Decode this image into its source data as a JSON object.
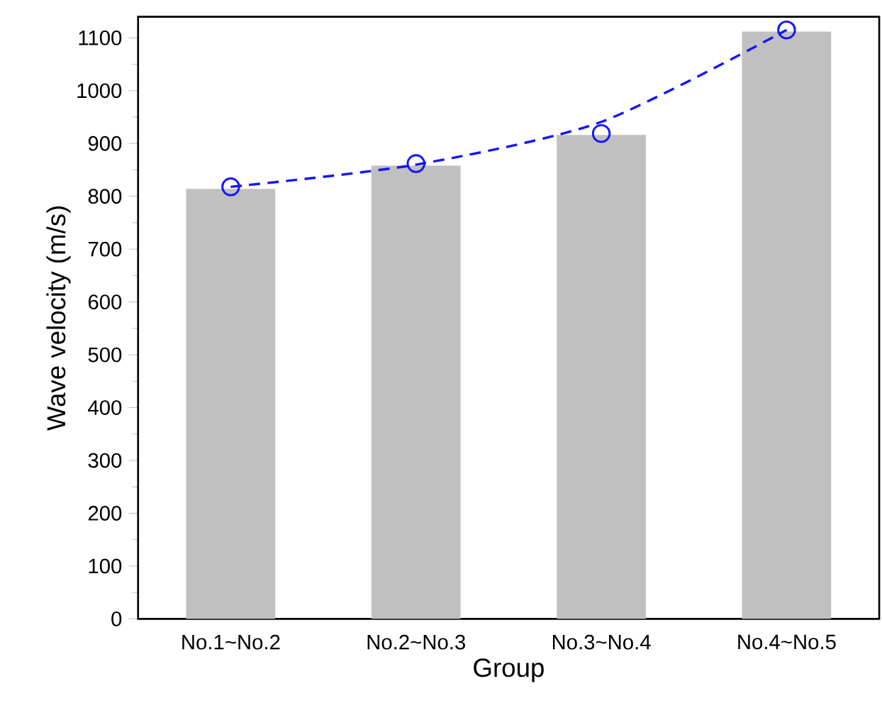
{
  "chart_data": {
    "type": "bar",
    "xlabel": "Group",
    "ylabel": "Wave velocity (m/s)",
    "categories": [
      "No.1~No.2",
      "No.2~No.3",
      "No.3~No.4",
      "No.4~No.5"
    ],
    "series": [
      {
        "color": "#c0c0c0",
        "values": [
          814,
          858,
          916,
          1112
        ]
      },
      {
        "type": "scatter",
        "color": "#1414ff",
        "marker": "circle",
        "values": [
          818,
          862,
          919,
          1115
        ]
      },
      {
        "type": "line",
        "color": "#1414ff",
        "line_style": "dashed",
        "marker": "none",
        "values": [
          818,
          860,
          941,
          1115
        ]
      }
    ],
    "ylim": [
      0,
      1140
    ],
    "yticks": [
      0,
      100,
      200,
      300,
      400,
      500,
      600,
      700,
      800,
      900,
      1000,
      1100
    ],
    "grid": false
  }
}
